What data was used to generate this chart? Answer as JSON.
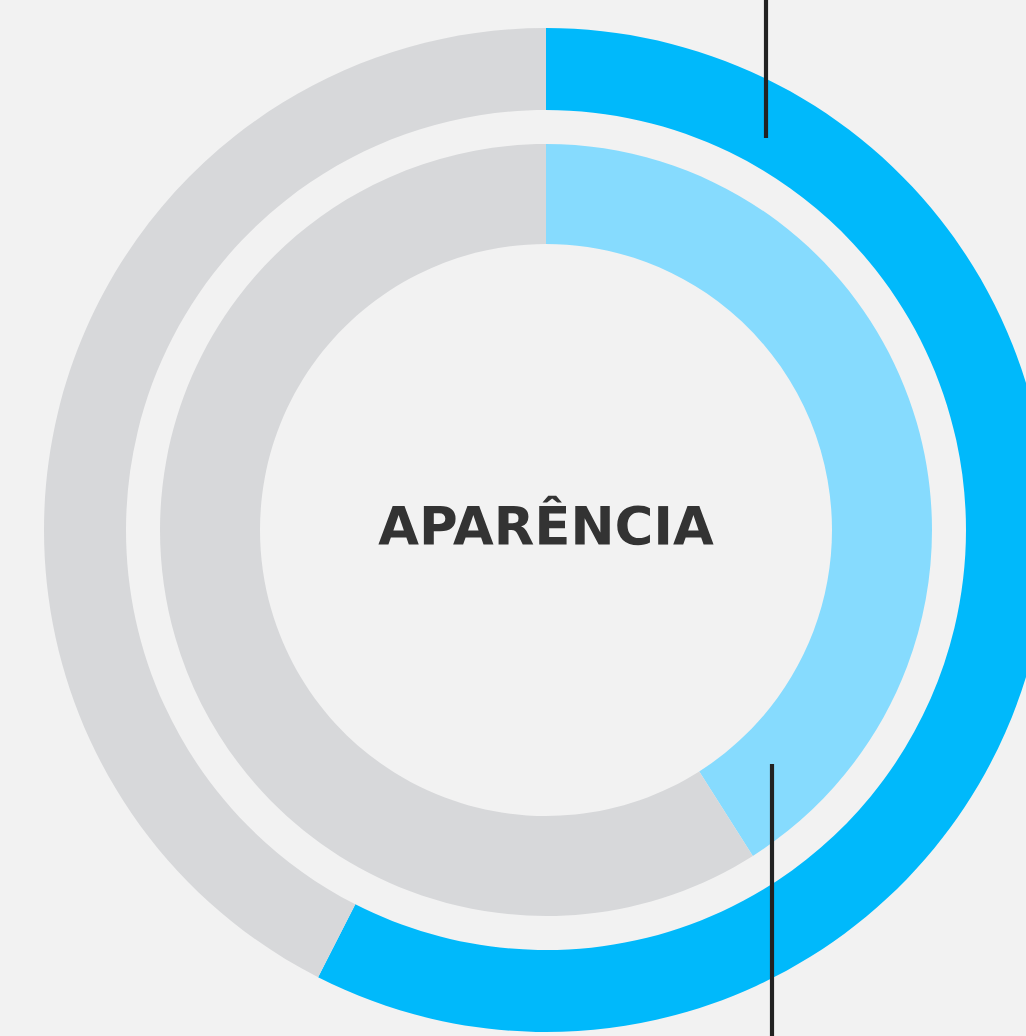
{
  "chart_data": {
    "type": "donut",
    "title": "APARÊNCIA",
    "categories": [
      null,
      null
    ],
    "series": [
      {
        "values": [
          57.5,
          42.5
        ],
        "colors": [
          "#00b9fb",
          "#d7d8da"
        ]
      },
      {
        "values": [
          41,
          59
        ],
        "colors": [
          "#86dbfe",
          "#d7d8da"
        ]
      }
    ]
  }
}
